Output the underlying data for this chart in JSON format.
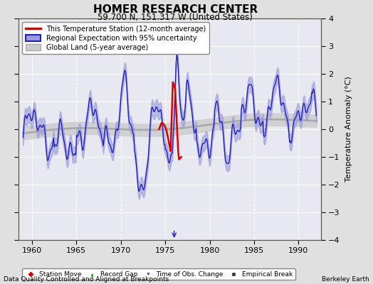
{
  "title": "HOMER RESEARCH CENTER",
  "subtitle": "59.700 N, 151.317 W (United States)",
  "ylabel": "Temperature Anomaly (°C)",
  "xlabel_left": "Data Quality Controlled and Aligned at Breakpoints",
  "xlabel_right": "Berkeley Earth",
  "ylim": [
    -4,
    4
  ],
  "xlim": [
    1958.5,
    1992.5
  ],
  "xticks": [
    1960,
    1965,
    1970,
    1975,
    1980,
    1985,
    1990
  ],
  "yticks": [
    -4,
    -3,
    -2,
    -1,
    0,
    1,
    2,
    3,
    4
  ],
  "bg_color": "#e0e0e0",
  "plot_bg_color": "#e8e8f0",
  "regional_color": "#2222bb",
  "regional_fill_color": "#9999dd",
  "station_color": "#dd0000",
  "global_color": "#aaaaaa",
  "global_fill_color": "#cccccc",
  "legend_items": [
    "This Temperature Station (12-month average)",
    "Regional Expectation with 95% uncertainty",
    "Global Land (5-year average)"
  ]
}
